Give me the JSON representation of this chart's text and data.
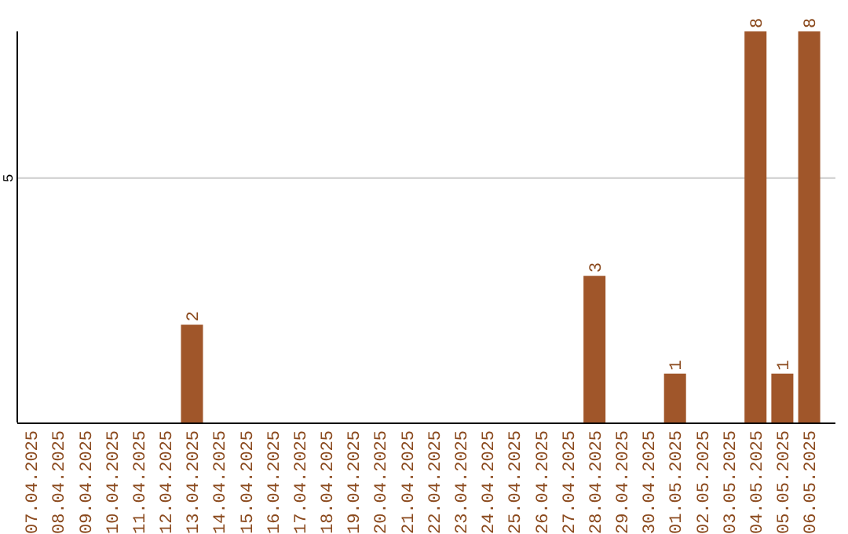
{
  "chart_data": {
    "type": "bar",
    "categories": [
      "07.04.2025",
      "08.04.2025",
      "09.04.2025",
      "10.04.2025",
      "11.04.2025",
      "12.04.2025",
      "13.04.2025",
      "14.04.2025",
      "15.04.2025",
      "16.04.2025",
      "17.04.2025",
      "18.04.2025",
      "19.04.2025",
      "20.04.2025",
      "21.04.2025",
      "22.04.2025",
      "23.04.2025",
      "24.04.2025",
      "25.04.2025",
      "26.04.2025",
      "27.04.2025",
      "28.04.2025",
      "29.04.2025",
      "30.04.2025",
      "01.05.2025",
      "02.05.2025",
      "03.05.2025",
      "04.05.2025",
      "05.05.2025",
      "06.05.2025"
    ],
    "values": [
      0,
      0,
      0,
      0,
      0,
      0,
      2,
      0,
      0,
      0,
      0,
      0,
      0,
      0,
      0,
      0,
      0,
      0,
      0,
      0,
      0,
      3,
      0,
      0,
      1,
      0,
      0,
      8,
      1,
      8
    ],
    "value_labels": [
      null,
      null,
      null,
      null,
      null,
      null,
      "2",
      null,
      null,
      null,
      null,
      null,
      null,
      null,
      null,
      null,
      null,
      null,
      null,
      null,
      null,
      "3",
      null,
      null,
      "1",
      null,
      null,
      "8",
      "1",
      "8"
    ],
    "color": "#a0562a",
    "ylim": [
      0,
      8
    ],
    "yticks": [
      5
    ],
    "grid": "y"
  }
}
